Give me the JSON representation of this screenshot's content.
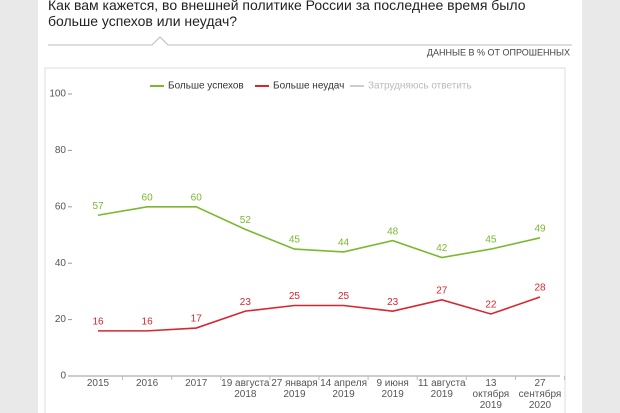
{
  "title": "Как вам кажется, во внешней политике России за последнее время было больше успехов или неудач?",
  "subtitle": "ДАННЫЕ В % ОТ ОПРОШЕННЫХ",
  "chart_data": {
    "type": "line",
    "categories": [
      "2015",
      "2016",
      "2017",
      "19 августа 2018",
      "27 января 2019",
      "14 апреля 2019",
      "9 июня 2019",
      "11 августа 2019",
      "13 октября 2019",
      "27 сентября 2020"
    ],
    "series": [
      {
        "name": "Больше успехов",
        "color": "#7cb82f",
        "values": [
          57,
          60,
          60,
          52,
          45,
          44,
          48,
          42,
          45,
          49
        ]
      },
      {
        "name": "Больше неудач",
        "color": "#d7262e",
        "values": [
          16,
          16,
          17,
          23,
          25,
          25,
          23,
          27,
          22,
          28
        ]
      },
      {
        "name": "Затрудняюсь ответить",
        "color": "#cccccc",
        "values": [
          null,
          null,
          null,
          null,
          null,
          null,
          null,
          null,
          null,
          null
        ]
      }
    ],
    "ylim": [
      0,
      100
    ],
    "yticks": [
      0,
      20,
      40,
      60,
      80,
      100
    ],
    "grid": false,
    "legend": "top"
  }
}
